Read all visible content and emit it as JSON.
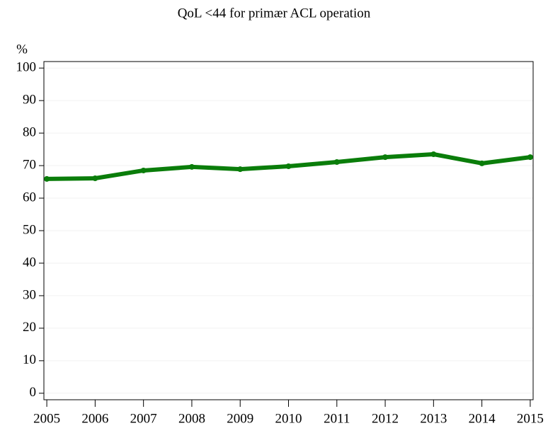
{
  "chart_data": {
    "type": "line",
    "title": "QoL <44 for primær ACL operation",
    "y_label": "%",
    "x": [
      2005,
      2006,
      2007,
      2008,
      2009,
      2010,
      2011,
      2012,
      2013,
      2014,
      2015
    ],
    "series": [
      {
        "color": "#0a7d0a",
        "values": [
          65.9,
          66.1,
          68.5,
          69.6,
          68.9,
          69.8,
          71.1,
          72.6,
          73.5,
          70.7,
          72.6
        ]
      }
    ],
    "xlim": [
      2004.94,
      2015.06
    ],
    "xticks": [
      2005,
      2006,
      2007,
      2008,
      2009,
      2010,
      2011,
      2012,
      2013,
      2014,
      2015
    ],
    "ylim": [
      -2,
      102
    ],
    "yticks": [
      0,
      10,
      20,
      30,
      40,
      50,
      60,
      70,
      80,
      90,
      100
    ],
    "grid": true
  }
}
